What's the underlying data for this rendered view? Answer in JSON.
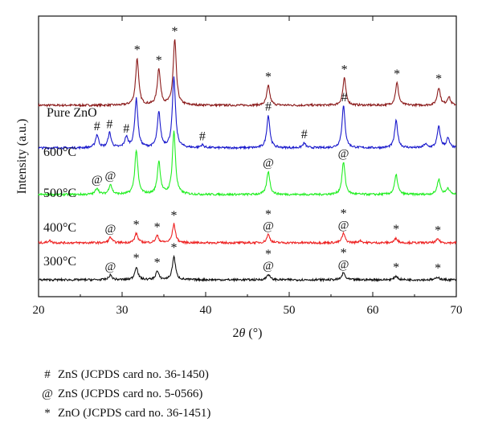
{
  "chart_data": {
    "type": "line",
    "xlabel_parts": [
      "2",
      "θ",
      " (°)"
    ],
    "ylabel": "Intensity (a.u.)",
    "xlim": [
      20,
      70
    ],
    "xticks": [
      "20",
      "30",
      "40",
      "50",
      "60",
      "70"
    ],
    "series": [
      {
        "name": "Pure ZnO",
        "color": "#8b1a1a",
        "peaks": [
          [
            31.8,
            1.0
          ],
          [
            34.4,
            0.78
          ],
          [
            36.3,
            1.4
          ],
          [
            47.5,
            0.42
          ],
          [
            56.6,
            0.58
          ],
          [
            62.9,
            0.48
          ],
          [
            67.9,
            0.38
          ],
          [
            69.1,
            0.18
          ]
        ],
        "markers": [
          {
            "x": 31.8,
            "sym": "*"
          },
          {
            "x": 34.4,
            "sym": "*"
          },
          {
            "x": 36.3,
            "sym": "*"
          },
          {
            "x": 47.5,
            "sym": "*"
          },
          {
            "x": 56.6,
            "sym": "*"
          },
          {
            "x": 62.9,
            "sym": "*"
          },
          {
            "x": 67.9,
            "sym": "*"
          }
        ]
      },
      {
        "name": "600°C",
        "color": "#1a1acc",
        "peaks": [
          [
            27.0,
            0.28
          ],
          [
            28.5,
            0.32
          ],
          [
            30.5,
            0.22
          ],
          [
            31.7,
            1.05
          ],
          [
            34.4,
            0.75
          ],
          [
            36.2,
            1.5
          ],
          [
            39.6,
            0.06
          ],
          [
            47.5,
            0.7
          ],
          [
            51.8,
            0.1
          ],
          [
            56.5,
            0.9
          ],
          [
            62.8,
            0.58
          ],
          [
            66.3,
            0.08
          ],
          [
            67.9,
            0.45
          ],
          [
            69.0,
            0.2
          ]
        ],
        "markers": [
          {
            "x": 27.0,
            "sym": "#"
          },
          {
            "x": 28.5,
            "sym": "#"
          },
          {
            "x": 30.5,
            "sym": "#"
          },
          {
            "x": 39.6,
            "sym": "#"
          },
          {
            "x": 47.5,
            "sym": "#"
          },
          {
            "x": 51.8,
            "sym": "#"
          },
          {
            "x": 56.6,
            "sym": "#"
          }
        ]
      },
      {
        "name": "500°C",
        "color": "#22ee22",
        "peaks": [
          [
            27.0,
            0.14
          ],
          [
            28.6,
            0.22
          ],
          [
            31.7,
            0.95
          ],
          [
            34.4,
            0.7
          ],
          [
            36.2,
            1.35
          ],
          [
            47.5,
            0.5
          ],
          [
            56.5,
            0.7
          ],
          [
            62.8,
            0.42
          ],
          [
            67.9,
            0.33
          ],
          [
            69.0,
            0.14
          ]
        ],
        "markers": [
          {
            "x": 27.0,
            "sym": "@"
          },
          {
            "x": 28.6,
            "sym": "@"
          },
          {
            "x": 47.5,
            "sym": "@"
          },
          {
            "x": 56.5,
            "sym": "@"
          }
        ]
      },
      {
        "name": "400°C",
        "color": "#ee2222",
        "peaks": [
          [
            21.3,
            0.05
          ],
          [
            28.6,
            0.12
          ],
          [
            31.7,
            0.2
          ],
          [
            34.2,
            0.15
          ],
          [
            36.2,
            0.4
          ],
          [
            47.5,
            0.18
          ],
          [
            56.5,
            0.2
          ],
          [
            58.5,
            0.05
          ],
          [
            62.8,
            0.1
          ],
          [
            67.8,
            0.08
          ]
        ],
        "markers": [
          {
            "x": 28.6,
            "sym": "@"
          },
          {
            "x": 31.7,
            "sym": "*"
          },
          {
            "x": 34.2,
            "sym": "*"
          },
          {
            "x": 36.2,
            "sym": "*"
          },
          {
            "x": 47.5,
            "sym": "*@"
          },
          {
            "x": 56.5,
            "sym": "*@"
          },
          {
            "x": 62.8,
            "sym": "*"
          },
          {
            "x": 67.8,
            "sym": "*"
          }
        ]
      },
      {
        "name": "300°C",
        "color": "#111111",
        "peaks": [
          [
            28.6,
            0.1
          ],
          [
            31.7,
            0.28
          ],
          [
            34.2,
            0.18
          ],
          [
            36.2,
            0.5
          ],
          [
            47.5,
            0.12
          ],
          [
            56.5,
            0.15
          ],
          [
            62.8,
            0.08
          ],
          [
            67.8,
            0.06
          ]
        ],
        "markers": [
          {
            "x": 28.6,
            "sym": "@"
          },
          {
            "x": 31.7,
            "sym": "*"
          },
          {
            "x": 34.2,
            "sym": "*"
          },
          {
            "x": 36.2,
            "sym": "*"
          },
          {
            "x": 47.5,
            "sym": "*@"
          },
          {
            "x": 56.5,
            "sym": "*@"
          },
          {
            "x": 62.8,
            "sym": "*"
          },
          {
            "x": 67.8,
            "sym": "*"
          }
        ]
      }
    ]
  },
  "legend": [
    {
      "sym": "#",
      "text": "ZnS (JCPDS card no. 36-1450)"
    },
    {
      "sym": "@",
      "text": "ZnS (JCPDS card no. 5-0566)"
    },
    {
      "sym": "*",
      "text": "ZnO (JCPDS card no. 36-1451)"
    }
  ]
}
